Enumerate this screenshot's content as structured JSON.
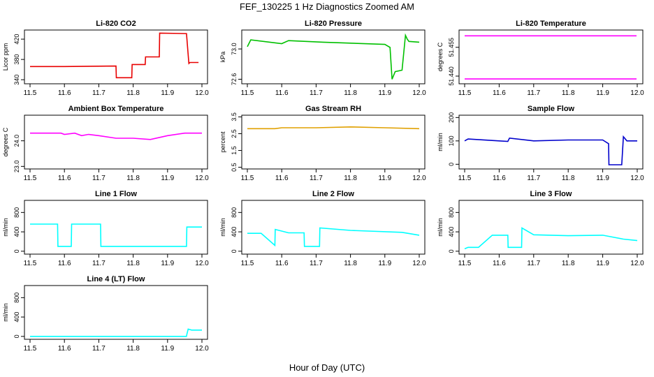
{
  "page": {
    "title": "FEF_130225  1 Hz Diagnostics Zoomed AM",
    "xlabel": "Hour of Day (UTC)"
  },
  "x_ticks": [
    "11.5",
    "11.6",
    "11.7",
    "11.8",
    "11.9",
    "12.0"
  ],
  "chart_data": [
    {
      "type": "line",
      "title": "Li-820 CO2",
      "ylabel": "Licor ppm",
      "xlim": [
        11.5,
        12.0
      ],
      "ylim": [
        332,
        438
      ],
      "yticks": [
        "340",
        "380",
        "420"
      ],
      "ytick_values": [
        340,
        380,
        420
      ],
      "color": "#e80000",
      "series": [
        {
          "x": [
            11.5,
            11.6,
            11.75,
            11.751,
            11.796,
            11.797,
            11.835,
            11.836,
            11.876,
            11.877,
            11.955,
            11.962,
            11.965,
            11.99
          ],
          "y": [
            366,
            366,
            367,
            344,
            344,
            370,
            370,
            385,
            385,
            432,
            431,
            372,
            374,
            374
          ]
        }
      ]
    },
    {
      "type": "line",
      "title": "Li-820 Pressure",
      "ylabel": "kPa",
      "xlim": [
        11.5,
        12.0
      ],
      "ylim": [
        72.54,
        73.25
      ],
      "yticks": [
        "72.6",
        "73.0"
      ],
      "ytick_values": [
        72.6,
        73.0
      ],
      "color": "#00c000",
      "series": [
        {
          "x": [
            11.5,
            11.51,
            11.6,
            11.62,
            11.72,
            11.9,
            11.915,
            11.921,
            11.93,
            11.95,
            11.96,
            11.965,
            11.97,
            12.0
          ],
          "y": [
            73.03,
            73.12,
            73.07,
            73.11,
            73.09,
            73.06,
            73.02,
            72.6,
            72.7,
            72.72,
            73.18,
            73.13,
            73.1,
            73.09
          ]
        }
      ]
    },
    {
      "type": "line",
      "title": "Li-820 Temperature",
      "ylabel": "degrees C",
      "xlim": [
        11.5,
        12.0
      ],
      "ylim": [
        51.436,
        51.464
      ],
      "yticks": [
        "51.440",
        "51.455"
      ],
      "ytick_values": [
        51.44,
        51.455
      ],
      "color": "#ff00ff",
      "series": [
        {
          "x": [
            11.5,
            11.998
          ],
          "y": [
            51.461,
            51.461
          ]
        },
        {
          "x": [
            11.5,
            11.998
          ],
          "y": [
            51.4385,
            51.4385
          ]
        }
      ]
    },
    {
      "type": "line",
      "title": "Ambient Box Temperature",
      "ylabel": "degrees C",
      "xlim": [
        11.5,
        12.0
      ],
      "ylim": [
        22.9,
        25.0
      ],
      "yticks": [
        "23.0",
        "24.0"
      ],
      "ytick_values": [
        23.0,
        24.0
      ],
      "color": "#ff00ff",
      "series": [
        {
          "x": [
            11.5,
            11.54,
            11.58,
            11.59,
            11.6,
            11.63,
            11.65,
            11.67,
            11.7,
            11.75,
            11.8,
            11.85,
            11.9,
            11.95,
            12.0
          ],
          "y": [
            24.3,
            24.3,
            24.3,
            24.3,
            24.25,
            24.3,
            24.2,
            24.25,
            24.2,
            24.1,
            24.1,
            24.05,
            24.2,
            24.3,
            24.3
          ]
        }
      ]
    },
    {
      "type": "line",
      "title": "Gas Stream RH",
      "ylabel": "percent",
      "xlim": [
        11.5,
        12.0
      ],
      "ylim": [
        0.4,
        3.6
      ],
      "yticks": [
        "0.5",
        "1.5",
        "2.5",
        "3.5"
      ],
      "ytick_values": [
        0.5,
        1.5,
        2.5,
        3.5
      ],
      "color": "#e0a000",
      "series": [
        {
          "x": [
            11.5,
            11.54,
            11.58,
            11.6,
            11.7,
            11.8,
            11.9,
            12.0
          ],
          "y": [
            2.8,
            2.8,
            2.8,
            2.85,
            2.85,
            2.9,
            2.85,
            2.8
          ]
        }
      ]
    },
    {
      "type": "line",
      "title": "Sample Flow",
      "ylabel": "ml/min",
      "xlim": [
        11.5,
        12.0
      ],
      "ylim": [
        -20,
        210
      ],
      "yticks": [
        "0",
        "100",
        "200"
      ],
      "ytick_values": [
        0,
        100,
        200
      ],
      "color": "#0000cc",
      "series": [
        {
          "x": [
            11.5,
            11.51,
            11.6,
            11.625,
            11.63,
            11.7,
            11.8,
            11.9,
            11.917,
            11.918,
            11.955,
            11.96,
            11.97,
            12.0
          ],
          "y": [
            100,
            108,
            100,
            98,
            112,
            100,
            104,
            104,
            88,
            -2,
            -2,
            118,
            100,
            100
          ]
        }
      ]
    },
    {
      "type": "line",
      "title": "Line 1 Flow",
      "ylabel": "ml/min",
      "xlim": [
        11.5,
        12.0
      ],
      "ylim": [
        -60,
        1050
      ],
      "yticks": [
        "0",
        "400",
        "800"
      ],
      "ytick_values": [
        0,
        400,
        800
      ],
      "color": "#00ffff",
      "series": [
        {
          "x": [
            11.5,
            11.54,
            11.58,
            11.581,
            11.62,
            11.621,
            11.705,
            11.706,
            11.955,
            11.956,
            12.0
          ],
          "y": [
            560,
            560,
            560,
            100,
            100,
            560,
            560,
            100,
            100,
            500,
            500
          ]
        }
      ]
    },
    {
      "type": "line",
      "title": "Line 2 Flow",
      "ylabel": "ml/min",
      "xlim": [
        11.5,
        12.0
      ],
      "ylim": [
        -60,
        1050
      ],
      "yticks": [
        "0",
        "400",
        "800"
      ],
      "ytick_values": [
        0,
        400,
        800
      ],
      "color": "#00ffff",
      "series": [
        {
          "x": [
            11.5,
            11.54,
            11.58,
            11.581,
            11.62,
            11.665,
            11.666,
            11.71,
            11.711,
            11.8,
            11.95,
            12.0
          ],
          "y": [
            370,
            370,
            120,
            450,
            380,
            380,
            100,
            100,
            480,
            430,
            390,
            330
          ]
        }
      ]
    },
    {
      "type": "line",
      "title": "Line 3 Flow",
      "ylabel": "ml/min",
      "xlim": [
        11.5,
        12.0
      ],
      "ylim": [
        -60,
        1050
      ],
      "yticks": [
        "0",
        "400",
        "800"
      ],
      "ytick_values": [
        0,
        400,
        800
      ],
      "color": "#00ffff",
      "series": [
        {
          "x": [
            11.5,
            11.51,
            11.54,
            11.58,
            11.581,
            11.625,
            11.626,
            11.665,
            11.666,
            11.7,
            11.8,
            11.9,
            11.96,
            12.0
          ],
          "y": [
            50,
            80,
            80,
            330,
            330,
            330,
            80,
            80,
            480,
            340,
            320,
            330,
            250,
            220
          ]
        }
      ]
    },
    {
      "type": "line",
      "title": "Line 4 (LT) Flow",
      "ylabel": "ml/min",
      "xlim": [
        11.5,
        12.0
      ],
      "ylim": [
        -60,
        1050
      ],
      "yticks": [
        "0",
        "400",
        "800"
      ],
      "ytick_values": [
        0,
        400,
        800
      ],
      "color": "#00ffff",
      "series": [
        {
          "x": [
            11.5,
            11.955,
            11.956,
            11.96,
            11.97,
            12.0
          ],
          "y": [
            0,
            0,
            40,
            150,
            130,
            130
          ]
        }
      ]
    }
  ]
}
